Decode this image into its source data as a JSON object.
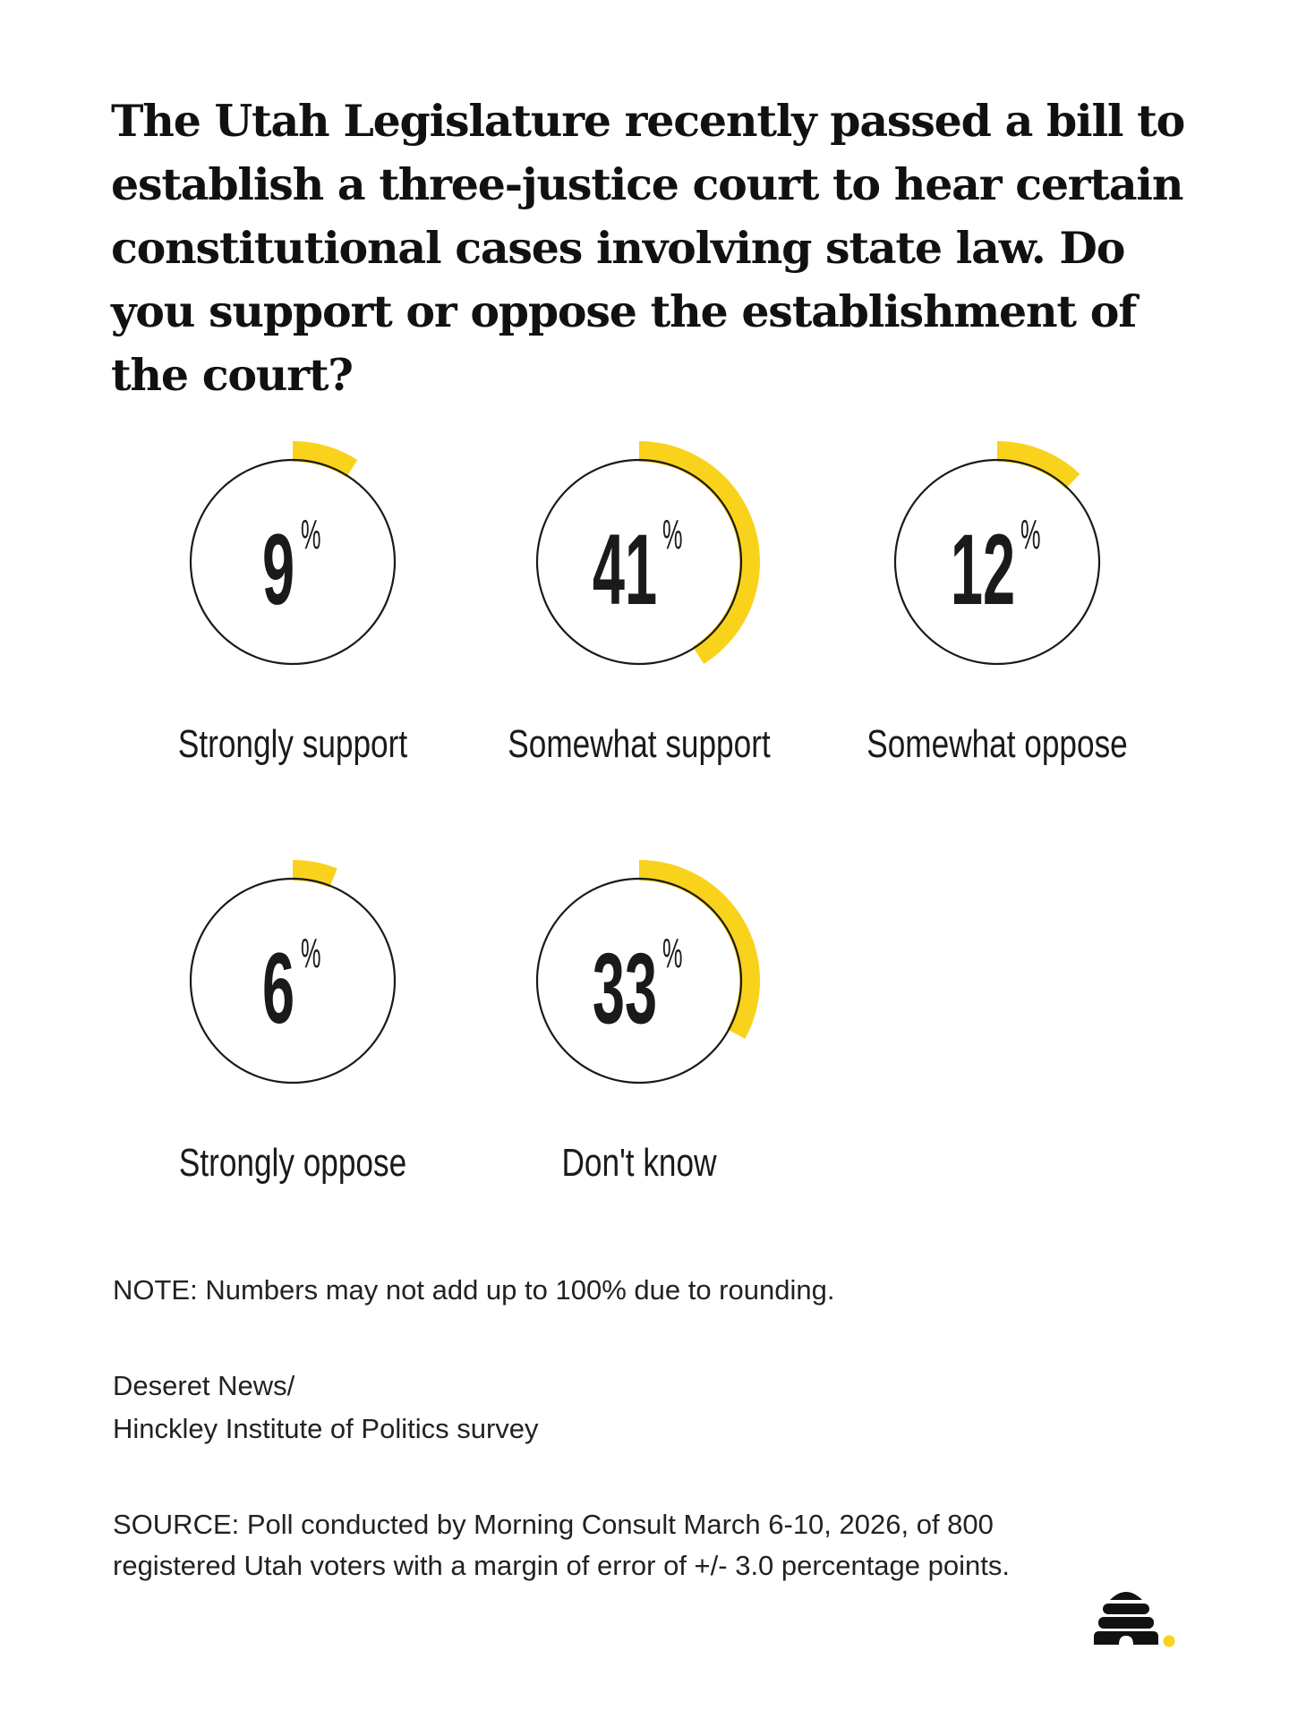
{
  "chart_data": {
    "type": "pie",
    "title": "The Utah Legislature recently passed a bill to establish a three-justice court to hear certain constitutional cases involving state law. Do you support or oppose the establishment of the court?",
    "categories": [
      "Strongly support",
      "Somewhat support",
      "Somewhat oppose",
      "Strongly oppose",
      "Don't know"
    ],
    "values": [
      9,
      41,
      12,
      6,
      33
    ],
    "unit": "%",
    "style": "radial progress rings, one per category",
    "colors": {
      "arc": "#F9D21C",
      "ring": "#1a1a1a",
      "text": "#1a1a1a"
    }
  },
  "note": "NOTE: Numbers may not add up to 100% due to rounding.",
  "credit": [
    "Deseret News/",
    "Hinckley Institute of Politics survey"
  ],
  "source": [
    "SOURCE: Poll conducted by Morning Consult March 6-10, 2026, of 800",
    "registered Utah voters with a margin of error of +/- 3.0 percentage points."
  ],
  "logo": {
    "name": "beehive-logo",
    "dot_color": "#F9D21C"
  }
}
